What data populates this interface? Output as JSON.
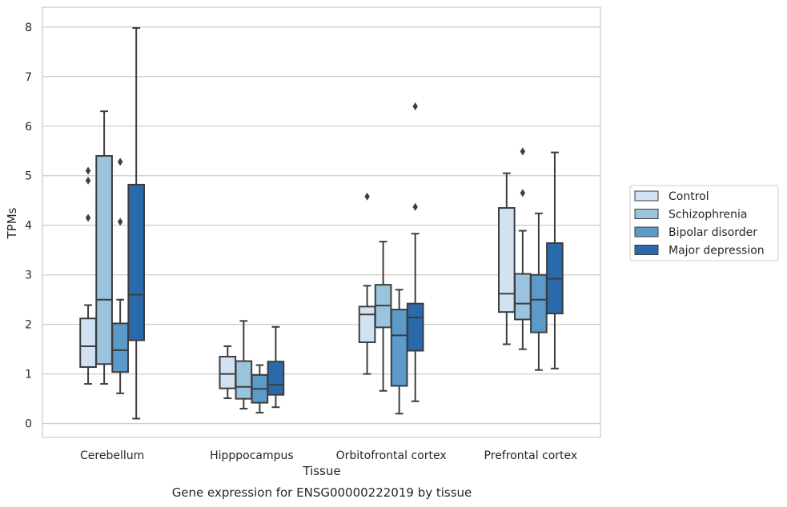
{
  "chart_data": {
    "type": "box",
    "xlabel": "Tissue",
    "ylabel": "TPMs",
    "caption": "Gene expression for ENSG00000222019 by tissue",
    "ylim": [
      -0.28,
      8.4
    ],
    "yticks": [
      0,
      1,
      2,
      3,
      4,
      5,
      6,
      7,
      8
    ],
    "ytick_labels": [
      "0",
      "1",
      "2",
      "3",
      "4",
      "5",
      "6",
      "7",
      "8"
    ],
    "grid": "horizontal",
    "legend_position": "right",
    "categories": [
      "Cerebellum",
      "Hipppocampus",
      "Orbitofrontal cortex",
      "Prefrontal cortex"
    ],
    "series": [
      {
        "name": "Control",
        "color": "#d1e2f2",
        "boxes": [
          {
            "whisker_low": 0.8,
            "q1": 1.14,
            "median": 1.56,
            "q3": 2.12,
            "whisker_high": 2.39,
            "outliers": [
              4.15,
              4.9,
              5.1
            ]
          },
          {
            "whisker_low": 0.51,
            "q1": 0.71,
            "median": 1.0,
            "q3": 1.35,
            "whisker_high": 1.56,
            "outliers": []
          },
          {
            "whisker_low": 1.0,
            "q1": 1.64,
            "median": 2.2,
            "q3": 2.36,
            "whisker_high": 2.78,
            "outliers": [
              4.58
            ]
          },
          {
            "whisker_low": 1.6,
            "q1": 2.25,
            "median": 2.62,
            "q3": 4.35,
            "whisker_high": 5.05,
            "outliers": []
          }
        ]
      },
      {
        "name": "Schizophrenia",
        "color": "#9ac3dd",
        "boxes": [
          {
            "whisker_low": 0.8,
            "q1": 1.2,
            "median": 2.5,
            "q3": 5.4,
            "whisker_high": 6.3,
            "outliers": []
          },
          {
            "whisker_low": 0.3,
            "q1": 0.5,
            "median": 0.74,
            "q3": 1.26,
            "whisker_high": 2.07,
            "outliers": []
          },
          {
            "whisker_low": 0.66,
            "q1": 1.94,
            "median": 2.38,
            "q3": 2.8,
            "whisker_high": 3.67,
            "outliers": []
          },
          {
            "whisker_low": 1.5,
            "q1": 2.1,
            "median": 2.42,
            "q3": 3.02,
            "whisker_high": 3.89,
            "outliers": [
              4.65,
              5.49
            ]
          }
        ]
      },
      {
        "name": "Bipolar disorder",
        "color": "#5a9bc9",
        "boxes": [
          {
            "whisker_low": 0.61,
            "q1": 1.04,
            "median": 1.48,
            "q3": 2.02,
            "whisker_high": 2.5,
            "outliers": [
              4.07,
              5.28
            ]
          },
          {
            "whisker_low": 0.22,
            "q1": 0.42,
            "median": 0.7,
            "q3": 0.98,
            "whisker_high": 1.18,
            "outliers": []
          },
          {
            "whisker_low": 0.2,
            "q1": 0.76,
            "median": 1.78,
            "q3": 2.3,
            "whisker_high": 2.7,
            "outliers": []
          },
          {
            "whisker_low": 1.08,
            "q1": 1.84,
            "median": 2.5,
            "q3": 3.0,
            "whisker_high": 4.24,
            "outliers": []
          }
        ]
      },
      {
        "name": "Major depression",
        "color": "#2a6aac",
        "boxes": [
          {
            "whisker_low": 0.1,
            "q1": 1.68,
            "median": 2.6,
            "q3": 4.82,
            "whisker_high": 7.98,
            "outliers": []
          },
          {
            "whisker_low": 0.33,
            "q1": 0.58,
            "median": 0.78,
            "q3": 1.25,
            "whisker_high": 1.95,
            "outliers": []
          },
          {
            "whisker_low": 0.45,
            "q1": 1.47,
            "median": 2.14,
            "q3": 2.42,
            "whisker_high": 3.83,
            "outliers": [
              4.37,
              6.4
            ]
          },
          {
            "whisker_low": 1.11,
            "q1": 2.22,
            "median": 2.92,
            "q3": 3.64,
            "whisker_high": 5.47,
            "outliers": []
          }
        ]
      }
    ]
  }
}
